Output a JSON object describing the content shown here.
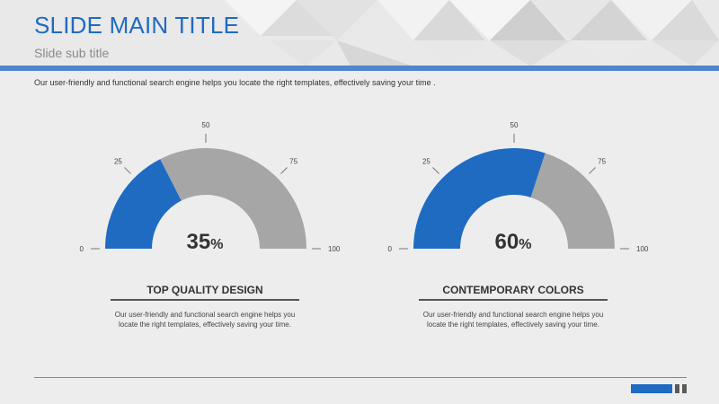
{
  "slide": {
    "title": "SLIDE MAIN TITLE",
    "subtitle": "Slide sub title",
    "intro": "Our user-friendly and functional search engine helps you locate the right templates, effectively saving your time ."
  },
  "colors": {
    "accent": "#1f6bc2",
    "gauge_track": "#a6a6a6"
  },
  "chart_data": [
    {
      "type": "gauge",
      "scale": [
        0,
        100
      ],
      "ticks": [
        "0",
        "25",
        "50",
        "75",
        "100"
      ],
      "value": 35,
      "value_label": "35",
      "unit": "%",
      "title": "TOP QUALITY DESIGN",
      "description": "Our user-friendly and functional search engine helps you locate the right templates, effectively saving your time."
    },
    {
      "type": "gauge",
      "scale": [
        0,
        100
      ],
      "ticks": [
        "0",
        "25",
        "50",
        "75",
        "100"
      ],
      "value": 60,
      "value_label": "60",
      "unit": "%",
      "title": "CONTEMPORARY COLORS",
      "description": "Our user-friendly and functional search engine helps you locate the right templates, effectively saving your time."
    }
  ]
}
